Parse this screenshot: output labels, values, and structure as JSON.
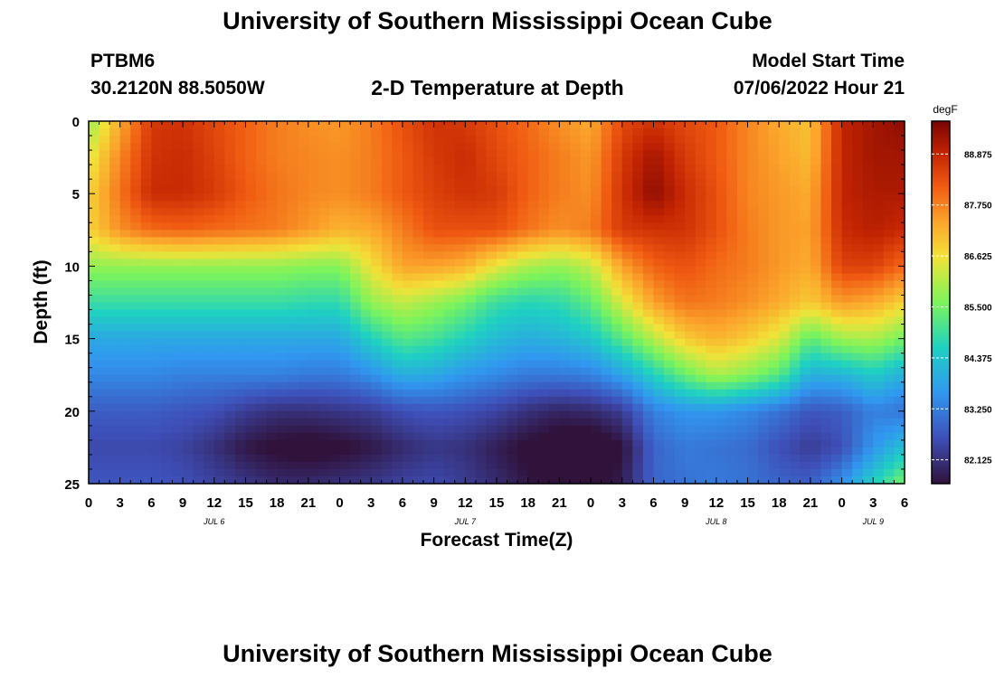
{
  "header": {
    "title": "University of Southern Mississippi Ocean Cube",
    "station_id": "PTBM6",
    "station_coords": "30.2120N  88.5050W",
    "plot_title": "2-D Temperature at Depth",
    "model_start_label": "Model Start Time",
    "model_start_value": "07/06/2022 Hour 21",
    "footer_title": "University of Southern Mississippi Ocean Cube"
  },
  "chart_data": {
    "type": "heatmap",
    "xlabel": "Forecast Time(Z)",
    "ylabel": "Depth (ft)",
    "colorbar_unit": "degF",
    "x_hours": [
      0,
      3,
      6,
      9,
      12,
      15,
      18,
      21,
      24,
      27,
      30,
      33,
      36,
      39,
      42,
      45,
      48,
      51,
      54,
      57,
      60,
      63,
      66,
      69,
      72,
      75,
      78
    ],
    "x_tick_labels": [
      "0",
      "3",
      "6",
      "9",
      "12",
      "15",
      "18",
      "21",
      "0",
      "3",
      "6",
      "9",
      "12",
      "15",
      "18",
      "21",
      "0",
      "3",
      "6",
      "9",
      "12",
      "15",
      "18",
      "21",
      "0",
      "3",
      "6"
    ],
    "date_labels": [
      {
        "hour": 12,
        "label": "JUL 6"
      },
      {
        "hour": 36,
        "label": "JUL 7"
      },
      {
        "hour": 60,
        "label": "JUL 8"
      },
      {
        "hour": 75,
        "label": "JUL 9"
      }
    ],
    "xlim": [
      0,
      78
    ],
    "depth_ft": [
      0,
      2.5,
      5,
      7.5,
      10,
      12.5,
      15,
      17.5,
      20,
      22.5,
      25
    ],
    "y_tick_labels": [
      "0",
      "5",
      "10",
      "15",
      "20",
      "25"
    ],
    "ylim": [
      0,
      25
    ],
    "colorbar_ticks": [
      "88.875",
      "87.750",
      "86.625",
      "85.500",
      "84.375",
      "83.250",
      "82.125"
    ],
    "colorbar_range": [
      81.6,
      89.6
    ],
    "temperature_degF": [
      [
        85.8,
        87.3,
        88.6,
        88.7,
        88.4,
        88.1,
        87.8,
        87.6,
        87.5,
        87.8,
        88.3,
        88.7,
        88.6,
        88.3,
        88.0,
        87.6,
        87.3,
        88.4,
        88.7,
        88.4,
        88.2,
        87.7,
        87.3,
        87.0,
        88.9,
        89.2,
        89.4
      ],
      [
        86.4,
        87.7,
        88.7,
        88.8,
        88.5,
        88.1,
        87.8,
        87.7,
        87.6,
        87.8,
        88.2,
        88.6,
        88.8,
        88.4,
        88.1,
        87.8,
        87.5,
        88.6,
        89.2,
        88.6,
        88.2,
        87.7,
        87.4,
        87.1,
        88.9,
        89.2,
        89.2
      ],
      [
        86.8,
        87.9,
        88.8,
        88.8,
        88.6,
        88.2,
        87.9,
        87.7,
        87.6,
        87.8,
        88.2,
        88.5,
        88.7,
        88.6,
        88.1,
        87.8,
        87.6,
        88.7,
        89.4,
        88.8,
        88.3,
        87.7,
        87.5,
        87.3,
        88.9,
        89.1,
        89.1
      ],
      [
        86.8,
        87.6,
        88.0,
        88.1,
        88.0,
        87.9,
        87.8,
        87.5,
        87.2,
        87.3,
        87.8,
        88.3,
        88.3,
        88.3,
        87.9,
        87.6,
        87.8,
        88.6,
        88.7,
        88.7,
        88.3,
        87.8,
        87.5,
        87.4,
        88.8,
        89.0,
        88.8
      ],
      [
        85.8,
        85.8,
        85.8,
        85.8,
        85.8,
        85.8,
        85.8,
        85.7,
        85.7,
        86.6,
        87.4,
        87.4,
        87.2,
        86.5,
        86.0,
        85.8,
        86.2,
        87.4,
        88.1,
        88.3,
        88.0,
        87.8,
        87.5,
        87.3,
        88.5,
        88.5,
        88.0
      ],
      [
        84.9,
        84.9,
        84.9,
        84.9,
        84.9,
        84.9,
        84.9,
        84.8,
        84.8,
        85.8,
        86.2,
        85.9,
        85.5,
        84.9,
        84.7,
        84.8,
        85.3,
        86.4,
        87.4,
        87.9,
        87.8,
        87.6,
        87.3,
        86.9,
        87.5,
        87.3,
        86.8
      ],
      [
        83.9,
        83.9,
        83.9,
        83.9,
        83.9,
        83.9,
        83.9,
        83.9,
        83.9,
        84.6,
        85.2,
        85.0,
        84.6,
        84.2,
        84.0,
        84.1,
        84.4,
        85.2,
        86.1,
        86.9,
        87.2,
        86.9,
        86.4,
        85.3,
        85.9,
        86.0,
        85.5
      ],
      [
        83.4,
        83.4,
        83.4,
        83.3,
        83.3,
        83.3,
        83.3,
        83.2,
        83.2,
        83.5,
        84.0,
        83.9,
        83.6,
        83.4,
        83.2,
        83.2,
        83.3,
        83.8,
        84.6,
        85.4,
        86.0,
        85.7,
        85.2,
        84.0,
        84.1,
        84.5,
        84.0
      ],
      [
        82.8,
        82.8,
        82.8,
        82.7,
        82.6,
        82.3,
        82.1,
        82.1,
        82.2,
        82.3,
        82.6,
        82.7,
        82.6,
        82.4,
        82.1,
        81.9,
        82.0,
        82.3,
        83.3,
        83.6,
        83.6,
        83.4,
        83.1,
        82.7,
        82.8,
        83.3,
        83.1
      ],
      [
        82.5,
        82.5,
        82.5,
        82.4,
        82.1,
        81.7,
        81.5,
        81.4,
        81.5,
        81.7,
        82.0,
        82.2,
        82.1,
        81.8,
        81.5,
        81.3,
        81.2,
        81.6,
        82.9,
        83.2,
        83.1,
        83.0,
        82.6,
        82.3,
        82.6,
        83.6,
        84.3
      ],
      [
        82.7,
        82.7,
        82.7,
        82.6,
        82.4,
        82.2,
        82.0,
        82.0,
        82.1,
        82.2,
        82.4,
        82.5,
        82.3,
        82.0,
        81.7,
        81.4,
        81.3,
        81.8,
        82.9,
        83.1,
        83.2,
        83.1,
        82.9,
        82.8,
        83.5,
        84.6,
        85.6
      ]
    ]
  }
}
